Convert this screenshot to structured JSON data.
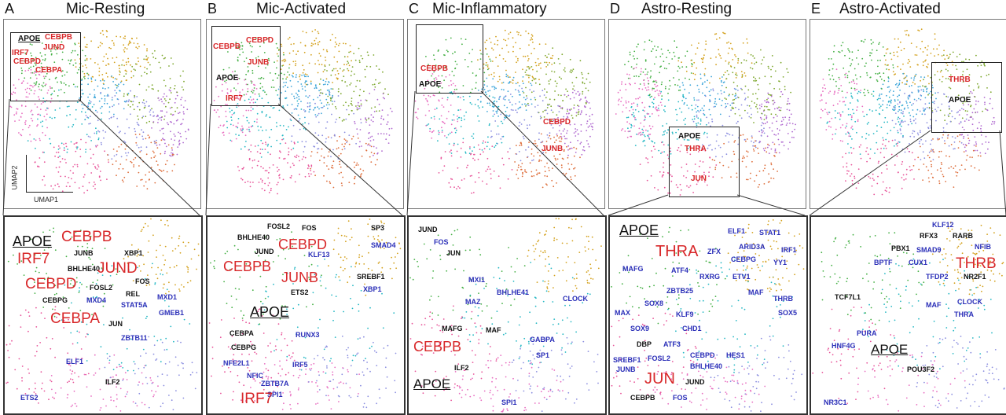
{
  "colors": {
    "red": "#d8282a",
    "blue": "#2b2fb8",
    "black": "#111111",
    "clusters": [
      "#e8559a",
      "#26b8c4",
      "#45b045",
      "#d4a21f",
      "#8c8fe0",
      "#de6f3d",
      "#b06ad0",
      "#7ea82f",
      "#e86fc1",
      "#3ea6da"
    ]
  },
  "axes": {
    "umap1": "UMAP1",
    "umap2": "UMAP2"
  },
  "panels": [
    {
      "letter": "A",
      "title": "Mic-Resting",
      "top_genes": [
        {
          "t": "APOE",
          "c": "black",
          "ul": true
        },
        {
          "t": "CEBPB",
          "c": "red"
        },
        {
          "t": "JUND",
          "c": "red"
        },
        {
          "t": "IRF7",
          "c": "red"
        },
        {
          "t": "CEBPD",
          "c": "red"
        },
        {
          "t": "CEBPA",
          "c": "red"
        }
      ],
      "zoom_genes": [
        {
          "t": "APOE",
          "c": "black",
          "ul": true
        },
        {
          "t": "CEBPB",
          "c": "red"
        },
        {
          "t": "IRF7",
          "c": "red"
        },
        {
          "t": "JUNB",
          "c": "black"
        },
        {
          "t": "XBP1",
          "c": "black"
        },
        {
          "t": "BHLHE40",
          "c": "black"
        },
        {
          "t": "JUND",
          "c": "red"
        },
        {
          "t": "CEBPD",
          "c": "red"
        },
        {
          "t": "FOSL2",
          "c": "black"
        },
        {
          "t": "FOS",
          "c": "black"
        },
        {
          "t": "REL",
          "c": "black"
        },
        {
          "t": "CEBPG",
          "c": "black"
        },
        {
          "t": "MXD4",
          "c": "blue"
        },
        {
          "t": "STAT5A",
          "c": "blue"
        },
        {
          "t": "MXD1",
          "c": "blue"
        },
        {
          "t": "CEBPA",
          "c": "red"
        },
        {
          "t": "GMEB1",
          "c": "blue"
        },
        {
          "t": "JUN",
          "c": "black"
        },
        {
          "t": "ZBTB11",
          "c": "blue"
        },
        {
          "t": "ELF1",
          "c": "blue"
        },
        {
          "t": "ILF2",
          "c": "black"
        },
        {
          "t": "ETS2",
          "c": "blue"
        }
      ]
    },
    {
      "letter": "B",
      "title": "Mic-Activated",
      "top_genes": [
        {
          "t": "CEBPB",
          "c": "red"
        },
        {
          "t": "CEBPD",
          "c": "red"
        },
        {
          "t": "JUNB",
          "c": "red"
        },
        {
          "t": "APOE",
          "c": "black"
        },
        {
          "t": "IRF7",
          "c": "red"
        }
      ],
      "zoom_genes": [
        {
          "t": "FOSL2",
          "c": "black"
        },
        {
          "t": "FOS",
          "c": "black"
        },
        {
          "t": "SP3",
          "c": "black"
        },
        {
          "t": "BHLHE40",
          "c": "black"
        },
        {
          "t": "CEBPD",
          "c": "red"
        },
        {
          "t": "KLF13",
          "c": "blue"
        },
        {
          "t": "JUND",
          "c": "black"
        },
        {
          "t": "SMAD4",
          "c": "blue"
        },
        {
          "t": "CEBPB",
          "c": "red"
        },
        {
          "t": "JUNB",
          "c": "red"
        },
        {
          "t": "SREBF1",
          "c": "black"
        },
        {
          "t": "XBP1",
          "c": "blue"
        },
        {
          "t": "ETS2",
          "c": "black"
        },
        {
          "t": "APOE",
          "c": "black",
          "ul": true
        },
        {
          "t": "CEBPA",
          "c": "black"
        },
        {
          "t": "RUNX3",
          "c": "blue"
        },
        {
          "t": "CEBPG",
          "c": "black"
        },
        {
          "t": "NFE2L1",
          "c": "blue"
        },
        {
          "t": "IRF5",
          "c": "blue"
        },
        {
          "t": "NFIC",
          "c": "blue"
        },
        {
          "t": "ZBTB7A",
          "c": "blue"
        },
        {
          "t": "SPI1",
          "c": "blue"
        },
        {
          "t": "IRF7",
          "c": "red"
        }
      ]
    },
    {
      "letter": "C",
      "title": "Mic-Inflammatory",
      "top_genes": [
        {
          "t": "CEBPB",
          "c": "red"
        },
        {
          "t": "APOE",
          "c": "black"
        },
        {
          "t": "CEBPD",
          "c": "red"
        },
        {
          "t": "JUNB",
          "c": "red"
        }
      ],
      "zoom_genes": [
        {
          "t": "JUND",
          "c": "black"
        },
        {
          "t": "FOS",
          "c": "blue"
        },
        {
          "t": "JUN",
          "c": "black"
        },
        {
          "t": "MXI1",
          "c": "blue"
        },
        {
          "t": "BHLHE41",
          "c": "blue"
        },
        {
          "t": "CLOCK",
          "c": "blue"
        },
        {
          "t": "MAZ",
          "c": "blue"
        },
        {
          "t": "MAFG",
          "c": "black"
        },
        {
          "t": "MAF",
          "c": "black"
        },
        {
          "t": "CEBPB",
          "c": "red"
        },
        {
          "t": "GABPA",
          "c": "blue"
        },
        {
          "t": "SP1",
          "c": "blue"
        },
        {
          "t": "ILF2",
          "c": "black"
        },
        {
          "t": "APOE",
          "c": "black",
          "ul": true
        },
        {
          "t": "SPI1",
          "c": "blue"
        }
      ]
    },
    {
      "letter": "D",
      "title": "Astro-Resting",
      "top_genes": [
        {
          "t": "APOE",
          "c": "black"
        },
        {
          "t": "THRA",
          "c": "red"
        },
        {
          "t": "JUN",
          "c": "red"
        }
      ],
      "zoom_genes": [
        {
          "t": "APOE",
          "c": "black",
          "ul": true
        },
        {
          "t": "ELF1",
          "c": "blue"
        },
        {
          "t": "STAT1",
          "c": "blue"
        },
        {
          "t": "ZFX",
          "c": "blue"
        },
        {
          "t": "ARID3A",
          "c": "blue"
        },
        {
          "t": "IRF1",
          "c": "blue"
        },
        {
          "t": "THRA",
          "c": "red"
        },
        {
          "t": "CEBPG",
          "c": "blue"
        },
        {
          "t": "YY1",
          "c": "blue"
        },
        {
          "t": "MAFG",
          "c": "blue"
        },
        {
          "t": "ATF4",
          "c": "blue"
        },
        {
          "t": "RXRG",
          "c": "blue"
        },
        {
          "t": "ETV1",
          "c": "blue"
        },
        {
          "t": "ZBTB25",
          "c": "blue"
        },
        {
          "t": "MAF",
          "c": "blue"
        },
        {
          "t": "THRB",
          "c": "blue"
        },
        {
          "t": "SOX8",
          "c": "blue"
        },
        {
          "t": "SOX5",
          "c": "blue"
        },
        {
          "t": "MAX",
          "c": "blue"
        },
        {
          "t": "KLF9",
          "c": "blue"
        },
        {
          "t": "SOX9",
          "c": "blue"
        },
        {
          "t": "CHD1",
          "c": "blue"
        },
        {
          "t": "DBP",
          "c": "black"
        },
        {
          "t": "ATF3",
          "c": "blue"
        },
        {
          "t": "CEBPD",
          "c": "blue"
        },
        {
          "t": "HES1",
          "c": "blue"
        },
        {
          "t": "SREBF1",
          "c": "blue"
        },
        {
          "t": "FOSL2",
          "c": "blue"
        },
        {
          "t": "BHLHE40",
          "c": "blue"
        },
        {
          "t": "JUNB",
          "c": "blue"
        },
        {
          "t": "JUN",
          "c": "red"
        },
        {
          "t": "JUND",
          "c": "black"
        },
        {
          "t": "CEBPB",
          "c": "black"
        },
        {
          "t": "FOS",
          "c": "blue"
        }
      ]
    },
    {
      "letter": "E",
      "title": "Astro-Activated",
      "top_genes": [
        {
          "t": "THRB",
          "c": "red"
        },
        {
          "t": "APOE",
          "c": "black"
        }
      ],
      "zoom_genes": [
        {
          "t": "KLF12",
          "c": "blue"
        },
        {
          "t": "RFX3",
          "c": "black"
        },
        {
          "t": "RARB",
          "c": "black"
        },
        {
          "t": "PBX1",
          "c": "black"
        },
        {
          "t": "SMAD9",
          "c": "blue"
        },
        {
          "t": "NFIB",
          "c": "blue"
        },
        {
          "t": "BPTF",
          "c": "blue"
        },
        {
          "t": "CUX1",
          "c": "blue"
        },
        {
          "t": "THRB",
          "c": "red"
        },
        {
          "t": "TFDP2",
          "c": "blue"
        },
        {
          "t": "NR2F1",
          "c": "black"
        },
        {
          "t": "TCF7L1",
          "c": "black"
        },
        {
          "t": "MAF",
          "c": "blue"
        },
        {
          "t": "CLOCK",
          "c": "blue"
        },
        {
          "t": "THRA",
          "c": "blue"
        },
        {
          "t": "PURA",
          "c": "blue"
        },
        {
          "t": "HNF4G",
          "c": "blue"
        },
        {
          "t": "APOE",
          "c": "black",
          "ul": true
        },
        {
          "t": "POU3F2",
          "c": "black"
        },
        {
          "t": "NR3C1",
          "c": "blue"
        }
      ]
    }
  ]
}
